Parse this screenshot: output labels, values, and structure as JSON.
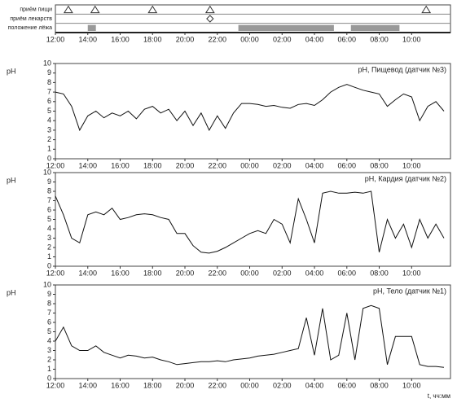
{
  "chart_data": [
    {
      "type": "timeline",
      "rows": [
        "приём пищи",
        "приём лекарств",
        "положение лёжа"
      ],
      "food": [
        12.8,
        14.45,
        18.0,
        21.55,
        34.9
      ],
      "medication": [
        21.55
      ],
      "lying": [
        [
          14.0,
          14.5
        ],
        [
          23.3,
          29.2
        ],
        [
          30.25,
          33.25
        ]
      ],
      "xlim": [
        12,
        36.4
      ],
      "xticks": [
        {
          "value": 12,
          "label": "12:00"
        },
        {
          "value": 14,
          "label": "14:00"
        },
        {
          "value": 16,
          "label": "16:00"
        },
        {
          "value": 18,
          "label": "18:00"
        },
        {
          "value": 20,
          "label": "20:00"
        },
        {
          "value": 22,
          "label": "22:00"
        },
        {
          "value": 24,
          "label": "00:00"
        },
        {
          "value": 26,
          "label": "02:00"
        },
        {
          "value": 28,
          "label": "04:00"
        },
        {
          "value": 30,
          "label": "06:00"
        },
        {
          "value": 32,
          "label": "08:00"
        },
        {
          "value": 34,
          "label": "10:00"
        }
      ]
    },
    {
      "type": "line",
      "title": "pH, Пищевод (датчик №3)",
      "ylabel": "pH",
      "color": "#111111",
      "x": [
        12,
        12.5,
        13,
        13.5,
        14,
        14.5,
        15,
        15.5,
        16,
        16.5,
        17,
        17.5,
        18,
        18.5,
        19,
        19.5,
        20,
        20.5,
        21,
        21.5,
        22,
        22.5,
        23,
        23.5,
        24,
        24.5,
        25,
        25.5,
        26,
        26.5,
        27,
        27.5,
        28,
        28.5,
        29,
        29.5,
        30,
        30.5,
        31,
        31.5,
        32,
        32.5,
        33,
        33.5,
        34,
        34.5,
        35,
        35.5,
        36
      ],
      "values": [
        7,
        6.8,
        5.5,
        3,
        4.5,
        5,
        4.3,
        4.8,
        4.5,
        5,
        4.2,
        5.2,
        5.5,
        4.8,
        5.2,
        4,
        5,
        3.5,
        4.8,
        3,
        4.5,
        3.2,
        4.8,
        5.8,
        5.8,
        5.7,
        5.5,
        5.6,
        5.4,
        5.3,
        5.7,
        5.8,
        5.6,
        6.2,
        7,
        7.5,
        7.8,
        7.5,
        7.2,
        7,
        6.8,
        5.5,
        6.2,
        6.8,
        6.5,
        4,
        5.5,
        6,
        5
      ],
      "xlim": [
        12,
        36.4
      ],
      "ylim": [
        0,
        10
      ],
      "yticks": [
        0,
        1,
        2,
        3,
        4,
        5,
        6,
        7,
        8,
        9,
        10
      ],
      "xticks": [
        {
          "value": 12,
          "label": "12:00"
        },
        {
          "value": 14,
          "label": "14:00"
        },
        {
          "value": 16,
          "label": "16:00"
        },
        {
          "value": 18,
          "label": "18:00"
        },
        {
          "value": 20,
          "label": "20:00"
        },
        {
          "value": 22,
          "label": "22:00"
        },
        {
          "value": 24,
          "label": "00:00"
        },
        {
          "value": 26,
          "label": "02:00"
        },
        {
          "value": 28,
          "label": "04:00"
        },
        {
          "value": 30,
          "label": "06:00"
        },
        {
          "value": 32,
          "label": "08:00"
        },
        {
          "value": 34,
          "label": "10:00"
        }
      ]
    },
    {
      "type": "line",
      "title": "pH, Кардия (датчик №2)",
      "ylabel": "pH",
      "color": "#111111",
      "x": [
        12,
        12.5,
        13,
        13.5,
        14,
        14.5,
        15,
        15.5,
        16,
        16.5,
        17,
        17.5,
        18,
        18.5,
        19,
        19.5,
        20,
        20.5,
        21,
        21.5,
        22,
        22.5,
        23,
        23.5,
        24,
        24.5,
        25,
        25.5,
        26,
        26.5,
        27,
        27.5,
        28,
        28.5,
        29,
        29.5,
        30,
        30.5,
        31,
        31.5,
        32,
        32.5,
        33,
        33.5,
        34,
        34.5,
        35,
        35.5,
        36
      ],
      "values": [
        7.5,
        5.5,
        3,
        2.5,
        5.5,
        5.8,
        5.5,
        6.2,
        5,
        5.2,
        5.5,
        5.6,
        5.5,
        5.2,
        5,
        3.5,
        3.5,
        2.2,
        1.5,
        1.4,
        1.6,
        2,
        2.5,
        3,
        3.5,
        3.8,
        3.5,
        5,
        4.5,
        2.5,
        7.2,
        5,
        2.5,
        7.8,
        8,
        7.8,
        7.8,
        7.9,
        7.8,
        8,
        1.5,
        5,
        3,
        4.5,
        2,
        5,
        3,
        4.5,
        3
      ],
      "xlim": [
        12,
        36.4
      ],
      "ylim": [
        0,
        10
      ],
      "yticks": [
        0,
        1,
        2,
        3,
        4,
        5,
        6,
        7,
        8,
        9,
        10
      ],
      "xticks": [
        {
          "value": 12,
          "label": "12:00"
        },
        {
          "value": 14,
          "label": "14:00"
        },
        {
          "value": 16,
          "label": "16:00"
        },
        {
          "value": 18,
          "label": "18:00"
        },
        {
          "value": 20,
          "label": "20:00"
        },
        {
          "value": 22,
          "label": "22:00"
        },
        {
          "value": 24,
          "label": "00:00"
        },
        {
          "value": 26,
          "label": "02:00"
        },
        {
          "value": 28,
          "label": "04:00"
        },
        {
          "value": 30,
          "label": "06:00"
        },
        {
          "value": 32,
          "label": "08:00"
        },
        {
          "value": 34,
          "label": "10:00"
        }
      ]
    },
    {
      "type": "line",
      "title": "pH, Тело (датчик №1)",
      "ylabel": "pH",
      "xlabel": "t, чч:мм",
      "color": "#111111",
      "x": [
        12,
        12.5,
        13,
        13.5,
        14,
        14.5,
        15,
        15.5,
        16,
        16.5,
        17,
        17.5,
        18,
        18.5,
        19,
        19.5,
        20,
        20.5,
        21,
        21.5,
        22,
        22.5,
        23,
        23.5,
        24,
        24.5,
        25,
        25.5,
        26,
        26.5,
        27,
        27.5,
        28,
        28.5,
        29,
        29.5,
        30,
        30.5,
        31,
        31.5,
        32,
        32.5,
        33,
        33.5,
        34,
        34.5,
        35,
        35.5,
        36
      ],
      "values": [
        4,
        5.5,
        3.5,
        3,
        3,
        3.5,
        2.8,
        2.5,
        2.2,
        2.5,
        2.4,
        2.2,
        2.3,
        2,
        1.8,
        1.5,
        1.6,
        1.7,
        1.8,
        1.8,
        1.9,
        1.8,
        2,
        2.1,
        2.2,
        2.4,
        2.5,
        2.6,
        2.8,
        3,
        3.2,
        6.5,
        2.5,
        7.5,
        2,
        2.5,
        7,
        2,
        7.5,
        7.8,
        7.5,
        1.5,
        4.5,
        4.5,
        4.5,
        1.5,
        1.3,
        1.3,
        1.2
      ],
      "xlim": [
        12,
        36.4
      ],
      "ylim": [
        0,
        10
      ],
      "yticks": [
        0,
        1,
        2,
        3,
        4,
        5,
        6,
        7,
        8,
        9,
        10
      ],
      "xticks": [
        {
          "value": 12,
          "label": "12:00"
        },
        {
          "value": 14,
          "label": "14:00"
        },
        {
          "value": 16,
          "label": "16:00"
        },
        {
          "value": 18,
          "label": "18:00"
        },
        {
          "value": 20,
          "label": "20:00"
        },
        {
          "value": 22,
          "label": "22:00"
        },
        {
          "value": 24,
          "label": "00:00"
        },
        {
          "value": 26,
          "label": "02:00"
        },
        {
          "value": 28,
          "label": "04:00"
        },
        {
          "value": 30,
          "label": "06:00"
        },
        {
          "value": 32,
          "label": "08:00"
        },
        {
          "value": 34,
          "label": "10:00"
        }
      ]
    }
  ]
}
